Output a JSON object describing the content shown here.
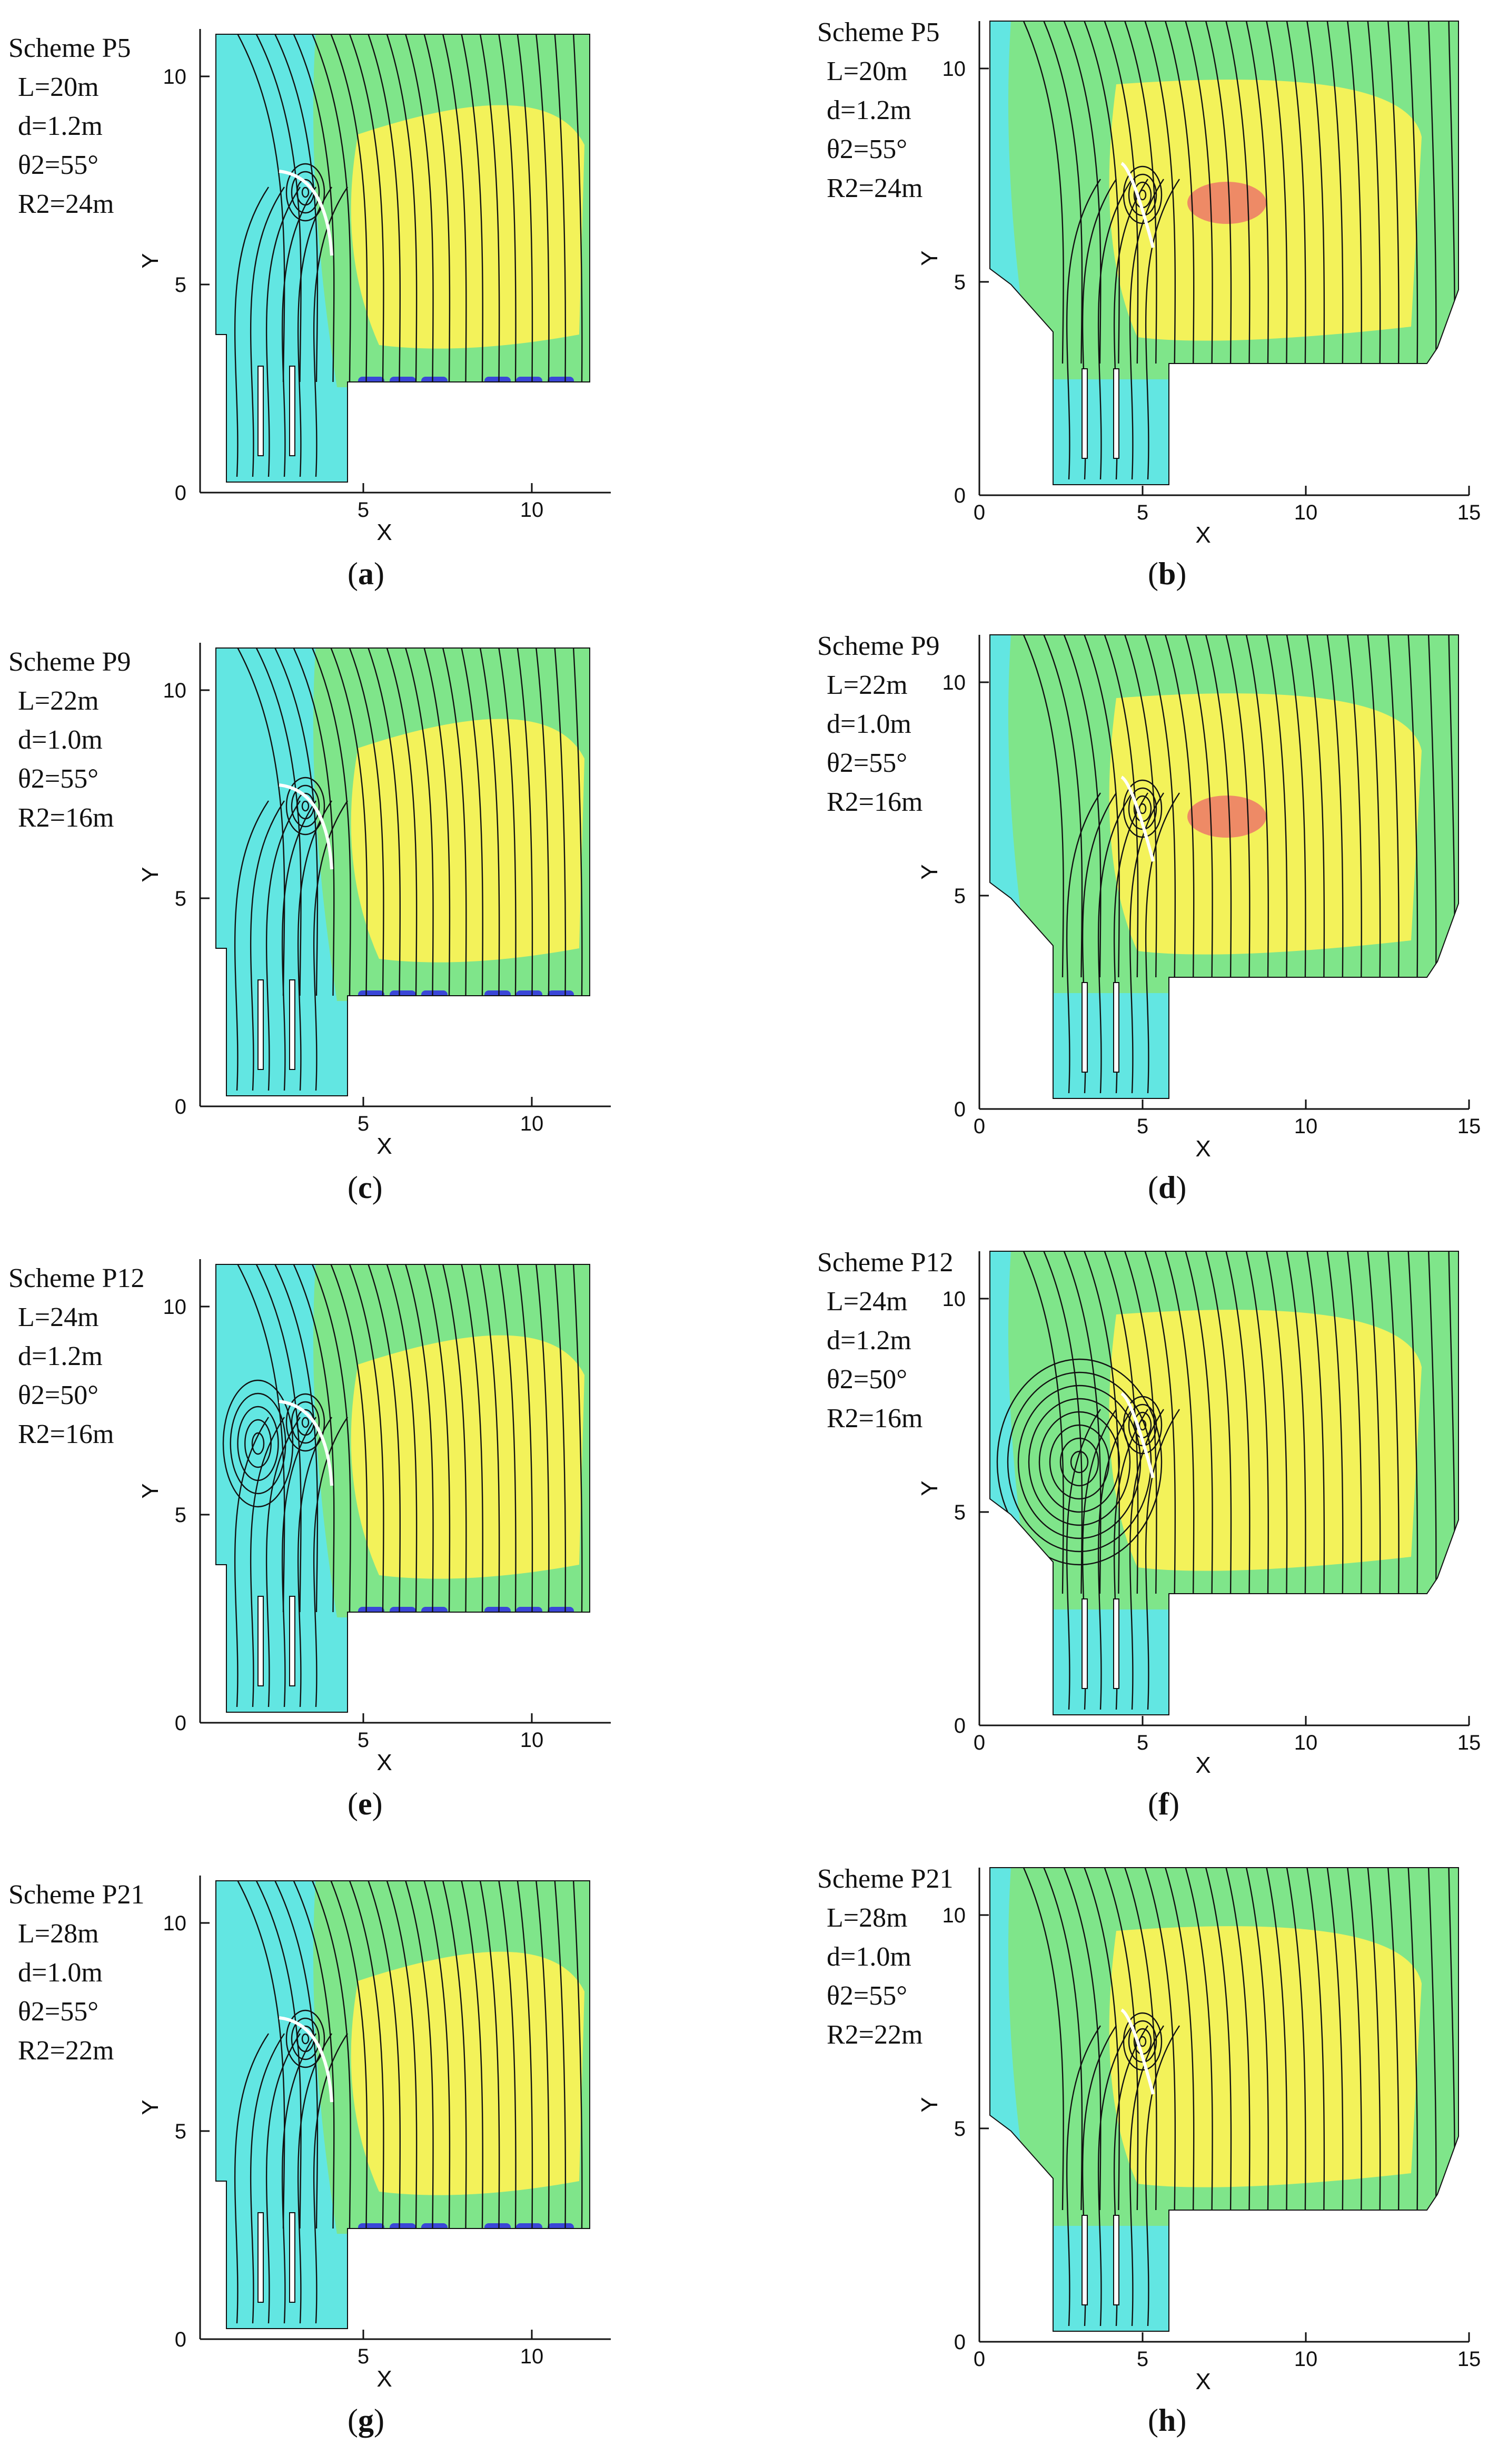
{
  "panels": [
    {
      "id": "a",
      "scheme": "Scheme P5",
      "L": "L=20m",
      "d": "d=1.2m",
      "theta": "θ2=55°",
      "R": "R2=24m",
      "caption": "a",
      "xticks": [
        "5",
        "10"
      ],
      "yticks": [
        "0",
        "5",
        "10"
      ],
      "xlabel": "X",
      "ylabel": "Y",
      "variant": "narrow"
    },
    {
      "id": "b",
      "scheme": "Scheme P5",
      "L": "L=20m",
      "d": "d=1.2m",
      "theta": "θ2=55°",
      "R": "R2=24m",
      "caption": "b",
      "xticks": [
        "0",
        "5",
        "10",
        "15"
      ],
      "yticks": [
        "0",
        "5",
        "10"
      ],
      "xlabel": "X",
      "ylabel": "Y",
      "variant": "wide"
    },
    {
      "id": "c",
      "scheme": "Scheme P9",
      "L": "L=22m",
      "d": "d=1.0m",
      "theta": "θ2=55°",
      "R": "R2=16m",
      "caption": "c",
      "xticks": [
        "5",
        "10"
      ],
      "yticks": [
        "0",
        "5",
        "10"
      ],
      "xlabel": "X",
      "ylabel": "Y",
      "variant": "narrow"
    },
    {
      "id": "d",
      "scheme": "Scheme P9",
      "L": "L=22m",
      "d": "d=1.0m",
      "theta": "θ2=55°",
      "R": "R2=16m",
      "caption": "d",
      "xticks": [
        "0",
        "5",
        "10",
        "15"
      ],
      "yticks": [
        "0",
        "5",
        "10"
      ],
      "xlabel": "X",
      "ylabel": "Y",
      "variant": "wide"
    },
    {
      "id": "e",
      "scheme": "Scheme P12",
      "L": "L=24m",
      "d": "d=1.2m",
      "theta": "θ2=50°",
      "R": "R2=16m",
      "caption": "e",
      "xticks": [
        "5",
        "10"
      ],
      "yticks": [
        "0",
        "5",
        "10"
      ],
      "xlabel": "X",
      "ylabel": "Y",
      "variant": "narrow"
    },
    {
      "id": "f",
      "scheme": "Scheme P12",
      "L": "L=24m",
      "d": "d=1.2m",
      "theta": "θ2=50°",
      "R": "R2=16m",
      "caption": "f",
      "xticks": [
        "0",
        "5",
        "10",
        "15"
      ],
      "yticks": [
        "0",
        "5",
        "10"
      ],
      "xlabel": "X",
      "ylabel": "Y",
      "variant": "wide"
    },
    {
      "id": "g",
      "scheme": "Scheme P21",
      "L": "L=28m",
      "d": "d=1.0m",
      "theta": "θ2=55°",
      "R": "R2=22m",
      "caption": "g",
      "xticks": [
        "5",
        "10"
      ],
      "yticks": [
        "0",
        "5",
        "10"
      ],
      "xlabel": "X",
      "ylabel": "Y",
      "variant": "narrow"
    },
    {
      "id": "h",
      "scheme": "Scheme P21",
      "L": "L=28m",
      "d": "d=1.0m",
      "theta": "θ2=55°",
      "R": "R2=22m",
      "caption": "h",
      "xticks": [
        "0",
        "5",
        "10",
        "15"
      ],
      "yticks": [
        "0",
        "5",
        "10"
      ],
      "xlabel": "X",
      "ylabel": "Y",
      "variant": "wide"
    }
  ],
  "colors": {
    "background_field": "#62e6e2",
    "mid_field": "#7fe58a",
    "high_field": "#f3f25a",
    "peak_field": "#ee8a66",
    "low_field": "#3a46d8",
    "streamline": "#111111",
    "axis": "#111111"
  }
}
